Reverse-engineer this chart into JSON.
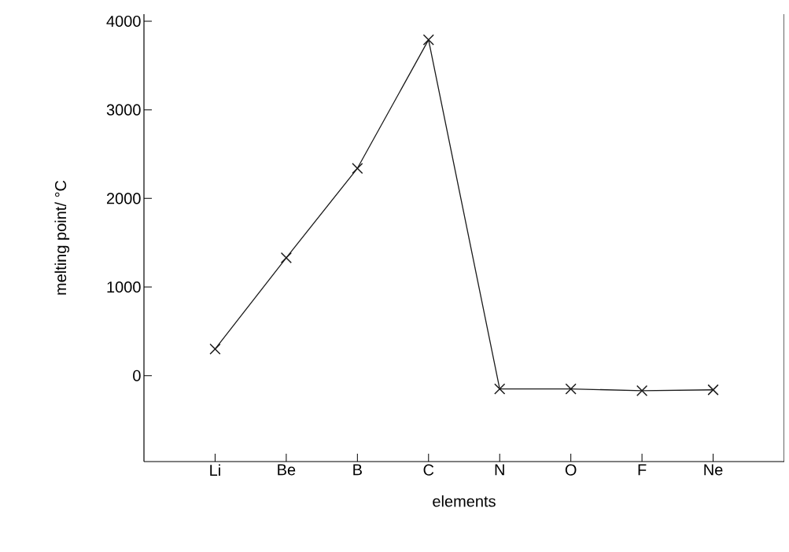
{
  "chart_data": {
    "type": "line",
    "xlabel": "elements",
    "ylabel": "melting point/ °C",
    "categories": [
      "Li",
      "Be",
      "B",
      "C",
      "N",
      "O",
      "F",
      "Ne"
    ],
    "values": [
      300,
      1330,
      2340,
      3790,
      -150,
      -150,
      -170,
      -160
    ],
    "color": "#1a1a1a",
    "marker": "cross",
    "line_style": "solid",
    "ylim": [
      -970,
      4080
    ],
    "yticks": [
      0,
      1000,
      2000,
      3000,
      4000
    ],
    "grid": false
  }
}
